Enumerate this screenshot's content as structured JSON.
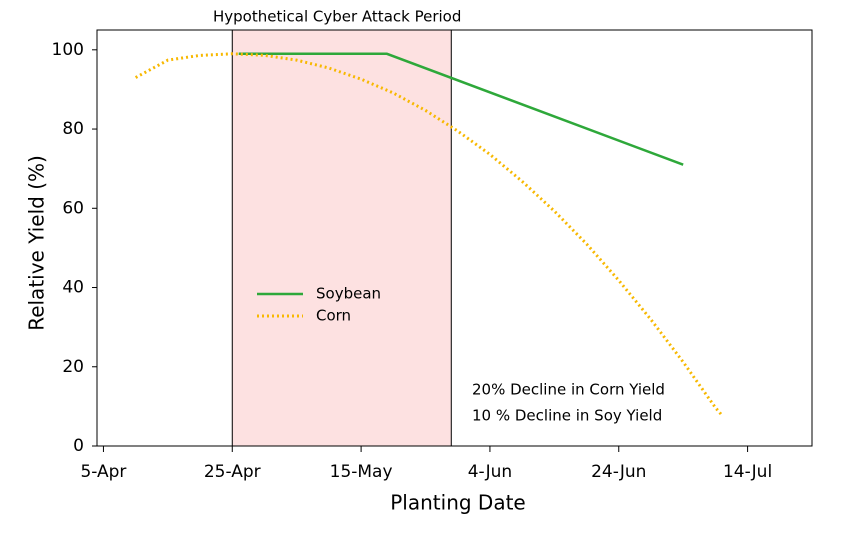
{
  "chart_data": {
    "type": "line",
    "xlabel": "Planting Date",
    "ylabel": "Relative  Yield (%)",
    "xlim": [
      94,
      205
    ],
    "ylim": [
      0,
      105
    ],
    "xticks": [
      {
        "value": 95,
        "label": "5-Apr"
      },
      {
        "value": 115,
        "label": "25-Apr"
      },
      {
        "value": 135,
        "label": "15-May"
      },
      {
        "value": 155,
        "label": "4-Jun"
      },
      {
        "value": 175,
        "label": "24-Jun"
      },
      {
        "value": 195,
        "label": "14-Jul"
      }
    ],
    "yticks": [
      0,
      20,
      40,
      60,
      80,
      100
    ],
    "highlight": {
      "label": "Hypothetical Cyber Attack Period",
      "xlim": [
        115,
        149
      ],
      "color": "#fde1e1"
    },
    "annotations": [
      "20% Decline in Corn Yield",
      "10 % Decline in Soy Yield"
    ],
    "legend": "center-left",
    "series": [
      {
        "name": "Soybean",
        "color": "#2ea83a",
        "style": "solid",
        "x": [
          116,
          139,
          185
        ],
        "values": [
          99,
          99,
          71
        ]
      },
      {
        "name": "Corn",
        "color": "#f7b801",
        "style": "dotted",
        "x": [
          100,
          105,
          110,
          115,
          120,
          125,
          130,
          135,
          140,
          145,
          150,
          155,
          160,
          165,
          170,
          175,
          180,
          185,
          190,
          191
        ],
        "values": [
          93,
          97.4,
          98.6,
          99,
          98.6,
          97.4,
          95.4,
          92.6,
          89.1,
          84.7,
          79.5,
          73.6,
          66.8,
          59.3,
          51.0,
          41.8,
          31.9,
          21.2,
          9.7,
          7.8
        ]
      }
    ]
  }
}
